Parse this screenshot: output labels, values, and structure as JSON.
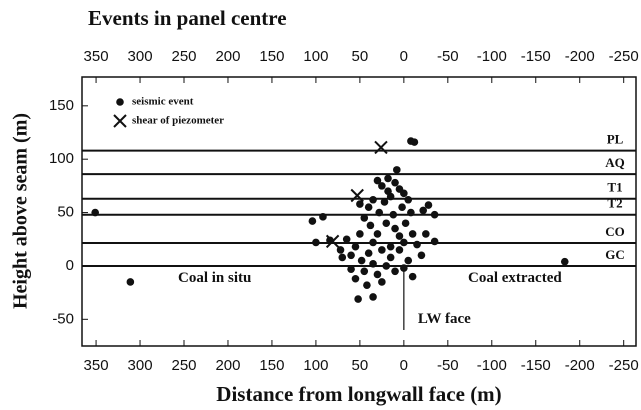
{
  "chart_data": {
    "type": "scatter",
    "title": "Events in panel centre",
    "xlabel": "Distance from longwall face (m)",
    "ylabel": "Height above seam (m)",
    "xlim": [
      366,
      -264
    ],
    "ylim": [
      -75,
      177
    ],
    "xticks": [
      350,
      300,
      250,
      200,
      150,
      100,
      50,
      0,
      -50,
      -100,
      -150,
      -200,
      -250
    ],
    "yticks": [
      150,
      100,
      50,
      0,
      -50
    ],
    "legend": "upper left",
    "horizons": [
      {
        "label": "PL",
        "y": 108
      },
      {
        "label": "AQ",
        "y": 86
      },
      {
        "label": "T1",
        "y": 63
      },
      {
        "label": "T2",
        "y": 48
      },
      {
        "label": "CO",
        "y": 21.5
      },
      {
        "label": "GC",
        "y": 0
      }
    ],
    "face_line": {
      "x": 0,
      "y": [
        0,
        -60
      ],
      "label": "LW face"
    },
    "annotations": [
      "Coal in situ",
      "Coal extracted"
    ],
    "series": [
      {
        "name": "seismic event",
        "marker": "dot",
        "color": "#111",
        "x": [
          351,
          311,
          -183,
          -8,
          -12,
          52,
          35,
          104,
          92,
          100,
          84,
          -35,
          -35,
          -28,
          -22,
          30,
          25,
          18,
          10,
          5,
          0,
          -5,
          15,
          22,
          35,
          40,
          28,
          12,
          2,
          -8,
          45,
          50,
          20,
          10,
          30,
          38,
          5,
          -10,
          -15,
          0,
          15,
          25,
          40,
          55,
          60,
          48,
          35,
          20,
          10,
          0,
          -5,
          30,
          45,
          55,
          60,
          70,
          15,
          -20,
          -10,
          25,
          5,
          65,
          72,
          35,
          -2,
          8,
          18,
          -25,
          50,
          42
        ],
        "y": [
          50,
          -15,
          4,
          117,
          116,
          -31,
          -29,
          42,
          46,
          22,
          24,
          48,
          23,
          57,
          52,
          80,
          75,
          82,
          78,
          72,
          68,
          62,
          65,
          60,
          62,
          55,
          50,
          48,
          55,
          50,
          45,
          58,
          40,
          35,
          30,
          38,
          28,
          30,
          20,
          22,
          18,
          15,
          12,
          18,
          10,
          5,
          2,
          0,
          -5,
          -2,
          5,
          -8,
          -5,
          -12,
          -3,
          8,
          8,
          10,
          -10,
          -15,
          15,
          25,
          15,
          22,
          40,
          90,
          70,
          30,
          30,
          -18
        ]
      },
      {
        "name": "shear of piezometer",
        "marker": "x",
        "color": "#111",
        "x": [
          26,
          53,
          81
        ],
        "y": [
          111,
          66,
          23
        ]
      }
    ]
  }
}
